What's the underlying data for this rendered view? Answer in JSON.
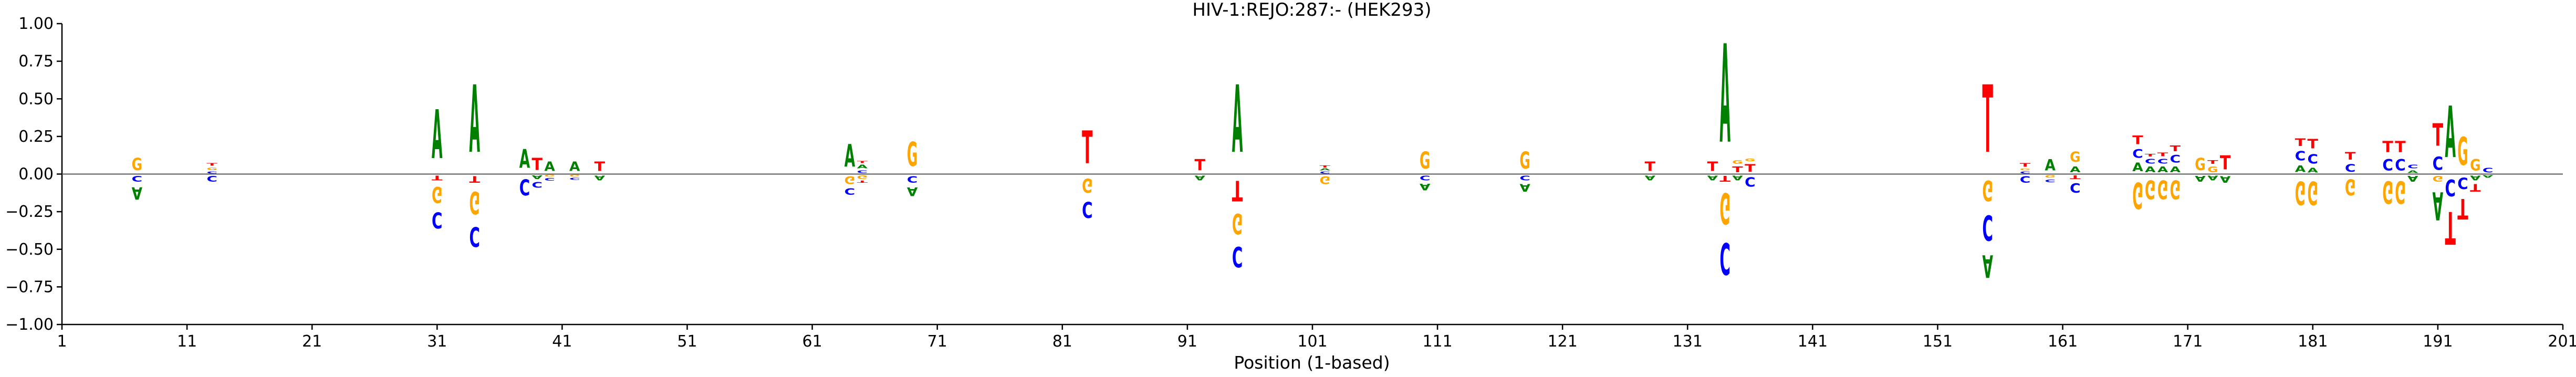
{
  "chart_data": {
    "type": "logo",
    "title": "HIV-1:REJO:287:-  (HEK293)",
    "xlabel": "Position (1-based)",
    "ylabel": "",
    "xlim": [
      1,
      201
    ],
    "ylim": [
      -1.0,
      1.0
    ],
    "xticks": [
      "1",
      "11",
      "21",
      "31",
      "41",
      "51",
      "61",
      "71",
      "81",
      "91",
      "101",
      "111",
      "121",
      "131",
      "141",
      "151",
      "161",
      "171",
      "181",
      "191",
      "201"
    ],
    "yticks": [
      "−1.00",
      "−0.75",
      "−0.50",
      "−0.25",
      "0.00",
      "0.25",
      "0.50",
      "0.75",
      "1.00"
    ],
    "grid": false,
    "colors": {
      "A": "#008000",
      "C": "#0000ff",
      "G": "#ffa500",
      "T": "#ff0000"
    },
    "positions": [
      {
        "x": 7,
        "pos": [
          [
            "G",
            0.13
          ]
        ],
        "neg": [
          [
            "C",
            0.06
          ],
          [
            "A",
            0.13
          ]
        ]
      },
      {
        "x": 13,
        "pos": [
          [
            "C",
            0.02
          ],
          [
            "G",
            0.03
          ],
          [
            "T",
            0.03
          ]
        ],
        "neg": [
          [
            "C",
            0.06
          ]
        ]
      },
      {
        "x": 31,
        "pos": [
          [
            "A",
            0.52
          ]
        ],
        "neg": [
          [
            "T",
            0.05
          ],
          [
            "G",
            0.17
          ],
          [
            "C",
            0.17
          ]
        ]
      },
      {
        "x": 34,
        "pos": [
          [
            "A",
            0.72
          ]
        ],
        "neg": [
          [
            "T",
            0.07
          ],
          [
            "G",
            0.24
          ],
          [
            "C",
            0.21
          ]
        ]
      },
      {
        "x": 38,
        "pos": [
          [
            "A",
            0.2
          ]
        ],
        "neg": [
          [
            "C",
            0.17
          ]
        ]
      },
      {
        "x": 39,
        "pos": [
          [
            "T",
            0.13
          ]
        ],
        "neg": [
          [
            "A",
            0.04
          ],
          [
            "C",
            0.06
          ]
        ]
      },
      {
        "x": 40,
        "pos": [
          [
            "A",
            0.1
          ]
        ],
        "neg": [
          [
            "G",
            0.02
          ],
          [
            "C",
            0.03
          ]
        ]
      },
      {
        "x": 42,
        "pos": [
          [
            "A",
            0.1
          ]
        ],
        "neg": [
          [
            "G",
            0.02
          ],
          [
            "C",
            0.02
          ]
        ]
      },
      {
        "x": 44,
        "pos": [
          [
            "T",
            0.1
          ]
        ],
        "neg": [
          [
            "A",
            0.05
          ]
        ]
      },
      {
        "x": 64,
        "pos": [
          [
            "A",
            0.24
          ]
        ],
        "neg": [
          [
            "G",
            0.08
          ],
          [
            "C",
            0.07
          ]
        ]
      },
      {
        "x": 65,
        "pos": [
          [
            "C",
            0.03
          ],
          [
            "A",
            0.04
          ],
          [
            "T",
            0.02
          ]
        ],
        "neg": [
          [
            "G",
            0.04
          ],
          [
            "T",
            0.02
          ]
        ]
      },
      {
        "x": 69,
        "pos": [
          [
            "G",
            0.26
          ]
        ],
        "neg": [
          [
            "C",
            0.07
          ],
          [
            "A",
            0.09
          ]
        ]
      },
      {
        "x": 83,
        "pos": [
          [
            "T",
            0.35
          ]
        ],
        "neg": [
          [
            "G",
            0.15
          ],
          [
            "C",
            0.17
          ]
        ]
      },
      {
        "x": 92,
        "pos": [
          [
            "T",
            0.12
          ]
        ],
        "neg": [
          [
            "A",
            0.05
          ]
        ]
      },
      {
        "x": 95,
        "pos": [
          [
            "A",
            0.72
          ]
        ],
        "neg": [
          [
            "T",
            0.22
          ],
          [
            "G",
            0.22
          ],
          [
            "C",
            0.22
          ]
        ]
      },
      {
        "x": 102,
        "pos": [
          [
            "C",
            0.02
          ],
          [
            "A",
            0.02
          ],
          [
            "T",
            0.02
          ]
        ],
        "neg": [
          [
            "G",
            0.08
          ]
        ]
      },
      {
        "x": 110,
        "pos": [
          [
            "G",
            0.18
          ]
        ],
        "neg": [
          [
            "C",
            0.05
          ],
          [
            "A",
            0.07
          ]
        ]
      },
      {
        "x": 118,
        "pos": [
          [
            "G",
            0.18
          ]
        ],
        "neg": [
          [
            "C",
            0.05
          ],
          [
            "A",
            0.08
          ]
        ]
      },
      {
        "x": 128,
        "pos": [
          [
            "T",
            0.1
          ]
        ],
        "neg": [
          [
            "A",
            0.05
          ]
        ]
      },
      {
        "x": 133,
        "pos": [
          [
            "T",
            0.1
          ]
        ],
        "neg": [
          [
            "A",
            0.05
          ]
        ]
      },
      {
        "x": 134,
        "pos": [
          [
            "A",
            1.05
          ]
        ],
        "neg": [
          [
            "T",
            0.06
          ],
          [
            "G",
            0.33
          ],
          [
            "C",
            0.34
          ]
        ]
      },
      {
        "x": 135,
        "pos": [
          [
            "T",
            0.06
          ],
          [
            "G",
            0.04
          ]
        ],
        "neg": [
          [
            "A",
            0.05
          ]
        ]
      },
      {
        "x": 136,
        "pos": [
          [
            "T",
            0.08
          ],
          [
            "G",
            0.03
          ]
        ],
        "neg": [
          [
            "C",
            0.1
          ]
        ]
      },
      {
        "x": 155,
        "pos": [
          [
            "T",
            0.72
          ]
        ],
        "neg": [
          [
            "G",
            0.22
          ],
          [
            "C",
            0.27
          ],
          [
            "A",
            0.24
          ]
        ]
      },
      {
        "x": 158,
        "pos": [
          [
            "C",
            0.02
          ],
          [
            "G",
            0.02
          ],
          [
            "T",
            0.04
          ]
        ],
        "neg": [
          [
            "C",
            0.07
          ]
        ]
      },
      {
        "x": 160,
        "pos": [
          [
            "A",
            0.12
          ]
        ],
        "neg": [
          [
            "G",
            0.03
          ],
          [
            "C",
            0.03
          ]
        ]
      },
      {
        "x": 162,
        "pos": [
          [
            "A",
            0.06
          ],
          [
            "G",
            0.11
          ]
        ],
        "neg": [
          [
            "T",
            0.04
          ],
          [
            "C",
            0.1
          ]
        ]
      },
      {
        "x": 167,
        "pos": [
          [
            "A",
            0.09
          ],
          [
            "C",
            0.09
          ],
          [
            "T",
            0.09
          ]
        ],
        "neg": [
          [
            "G",
            0.28
          ]
        ]
      },
      {
        "x": 168,
        "pos": [
          [
            "A",
            0.06
          ],
          [
            "C",
            0.05
          ],
          [
            "T",
            0.03
          ]
        ],
        "neg": [
          [
            "G",
            0.2
          ]
        ]
      },
      {
        "x": 169,
        "pos": [
          [
            "A",
            0.06
          ],
          [
            "C",
            0.05
          ],
          [
            "T",
            0.04
          ]
        ],
        "neg": [
          [
            "G",
            0.2
          ]
        ]
      },
      {
        "x": 170,
        "pos": [
          [
            "A",
            0.06
          ],
          [
            "C",
            0.08
          ],
          [
            "T",
            0.06
          ]
        ],
        "neg": [
          [
            "G",
            0.2
          ]
        ]
      },
      {
        "x": 172,
        "pos": [
          [
            "G",
            0.13
          ]
        ],
        "neg": [
          [
            "A",
            0.06
          ]
        ]
      },
      {
        "x": 173,
        "pos": [
          [
            "G",
            0.06
          ],
          [
            "T",
            0.04
          ]
        ],
        "neg": [
          [
            "A",
            0.05
          ]
        ]
      },
      {
        "x": 174,
        "pos": [
          [
            "T",
            0.15
          ]
        ],
        "neg": [
          [
            "A",
            0.07
          ]
        ]
      },
      {
        "x": 180,
        "pos": [
          [
            "A",
            0.07
          ],
          [
            "C",
            0.1
          ],
          [
            "T",
            0.08
          ]
        ],
        "neg": [
          [
            "G",
            0.25
          ]
        ]
      },
      {
        "x": 181,
        "pos": [
          [
            "A",
            0.05
          ],
          [
            "C",
            0.1
          ],
          [
            "T",
            0.1
          ]
        ],
        "neg": [
          [
            "G",
            0.25
          ]
        ]
      },
      {
        "x": 184,
        "pos": [
          [
            "C",
            0.08
          ],
          [
            "T",
            0.08
          ]
        ],
        "neg": [
          [
            "G",
            0.17
          ]
        ]
      },
      {
        "x": 187,
        "pos": [
          [
            "C",
            0.12
          ],
          [
            "T",
            0.12
          ]
        ],
        "neg": [
          [
            "G",
            0.24
          ]
        ]
      },
      {
        "x": 188,
        "pos": [
          [
            "C",
            0.12
          ],
          [
            "T",
            0.12
          ]
        ],
        "neg": [
          [
            "G",
            0.24
          ]
        ]
      },
      {
        "x": 189,
        "pos": [
          [
            "A",
            0.03
          ],
          [
            "C",
            0.04
          ]
        ],
        "neg": [
          [
            "A",
            0.06
          ]
        ]
      },
      {
        "x": 191,
        "pos": [
          [
            "C",
            0.14
          ],
          [
            "T",
            0.24
          ]
        ],
        "neg": [
          [
            "G",
            0.06
          ],
          [
            "A",
            0.3
          ]
        ]
      },
      {
        "x": 192,
        "pos": [
          [
            "A",
            0.55
          ]
        ],
        "neg": [
          [
            "C",
            0.18
          ],
          [
            "T",
            0.35
          ]
        ]
      },
      {
        "x": 193,
        "pos": [
          [
            "G",
            0.3
          ]
        ],
        "neg": [
          [
            "C",
            0.12
          ],
          [
            "T",
            0.22
          ]
        ]
      },
      {
        "x": 194,
        "pos": [
          [
            "G",
            0.12
          ]
        ],
        "neg": [
          [
            "A",
            0.05
          ],
          [
            "T",
            0.08
          ]
        ]
      },
      {
        "x": 195,
        "pos": [
          [
            "C",
            0.05
          ]
        ],
        "neg": [
          [
            "A",
            0.03
          ]
        ]
      }
    ]
  }
}
